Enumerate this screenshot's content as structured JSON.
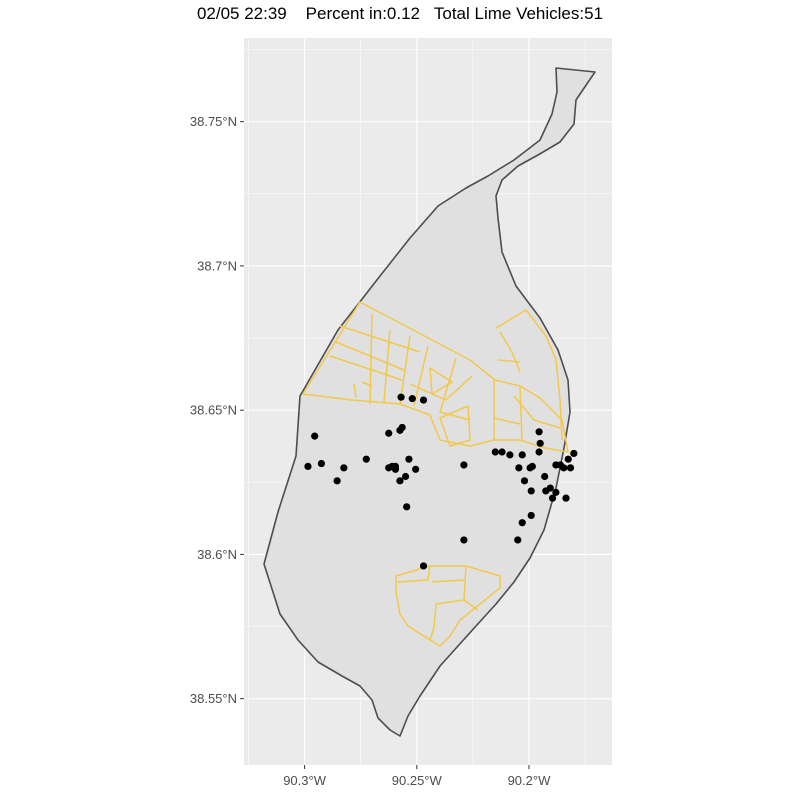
{
  "title": "02/05 22:39    Percent in:0.12   Total Lime Vehicles:51",
  "colors": {
    "panel_background": "#ebebeb",
    "grid_line": "#ffffff",
    "city_fill": "#e0e0e0",
    "city_outline": "#4d4d4d",
    "district_outline": "#f2c84b",
    "point": "#000000"
  },
  "chart_data": {
    "type": "scatter",
    "title": "02/05 22:39    Percent in:0.12   Total Lime Vehicles:51",
    "xlabel": "",
    "ylabel": "",
    "xlim": [
      -90.327,
      -90.163
    ],
    "ylim": [
      38.527,
      38.779
    ],
    "grid": true,
    "x_ticks": [
      -90.3,
      -90.25,
      -90.2
    ],
    "x_tick_labels": [
      "90.3°W",
      "90.25°W",
      "90.2°W"
    ],
    "y_ticks": [
      38.55,
      38.6,
      38.65,
      38.7,
      38.75
    ],
    "y_tick_labels": [
      "38.55°N",
      "38.6°N",
      "38.65°N",
      "38.7°N",
      "38.75°N"
    ],
    "series": [
      {
        "points": [
          {
            "x": -90.2985,
            "y": 38.6305
          },
          {
            "x": -90.2955,
            "y": 38.641
          },
          {
            "x": -90.2925,
            "y": 38.6315
          },
          {
            "x": -90.2855,
            "y": 38.6255
          },
          {
            "x": -90.2825,
            "y": 38.63
          },
          {
            "x": -90.2725,
            "y": 38.633
          },
          {
            "x": -90.2625,
            "y": 38.642
          },
          {
            "x": -90.2625,
            "y": 38.63
          },
          {
            "x": -90.2595,
            "y": 38.6305
          },
          {
            "x": -90.2595,
            "y": 38.6295
          },
          {
            "x": -90.2575,
            "y": 38.643
          },
          {
            "x": -90.2565,
            "y": 38.644
          },
          {
            "x": -90.2575,
            "y": 38.6255
          },
          {
            "x": -90.255,
            "y": 38.627
          },
          {
            "x": -90.2535,
            "y": 38.633
          },
          {
            "x": -90.2505,
            "y": 38.6295
          },
          {
            "x": -90.2545,
            "y": 38.6165
          },
          {
            "x": -90.257,
            "y": 38.6545
          },
          {
            "x": -90.252,
            "y": 38.654
          },
          {
            "x": -90.247,
            "y": 38.6535
          },
          {
            "x": -90.247,
            "y": 38.596
          },
          {
            "x": -90.229,
            "y": 38.631
          },
          {
            "x": -90.229,
            "y": 38.605
          },
          {
            "x": -90.212,
            "y": 38.6355
          },
          {
            "x": -90.2085,
            "y": 38.6345
          },
          {
            "x": -90.2045,
            "y": 38.63
          },
          {
            "x": -90.203,
            "y": 38.6345
          },
          {
            "x": -90.205,
            "y": 38.605
          },
          {
            "x": -90.203,
            "y": 38.611
          },
          {
            "x": -90.202,
            "y": 38.6255
          },
          {
            "x": -90.1995,
            "y": 38.63
          },
          {
            "x": -90.1985,
            "y": 38.6305
          },
          {
            "x": -90.199,
            "y": 38.622
          },
          {
            "x": -90.199,
            "y": 38.6135
          },
          {
            "x": -90.1955,
            "y": 38.6425
          },
          {
            "x": -90.195,
            "y": 38.6385
          },
          {
            "x": -90.193,
            "y": 38.627
          },
          {
            "x": -90.1925,
            "y": 38.622
          },
          {
            "x": -90.1905,
            "y": 38.623
          },
          {
            "x": -90.1895,
            "y": 38.6195
          },
          {
            "x": -90.188,
            "y": 38.631
          },
          {
            "x": -90.188,
            "y": 38.6215
          },
          {
            "x": -90.186,
            "y": 38.631
          },
          {
            "x": -90.1845,
            "y": 38.63
          },
          {
            "x": -90.1835,
            "y": 38.6195
          },
          {
            "x": -90.1825,
            "y": 38.633
          },
          {
            "x": -90.1815,
            "y": 38.63
          },
          {
            "x": -90.18,
            "y": 38.635
          },
          {
            "x": -90.1955,
            "y": 38.6355
          },
          {
            "x": -90.215,
            "y": 38.6355
          },
          {
            "x": -90.261,
            "y": 38.6305
          }
        ]
      }
    ]
  }
}
